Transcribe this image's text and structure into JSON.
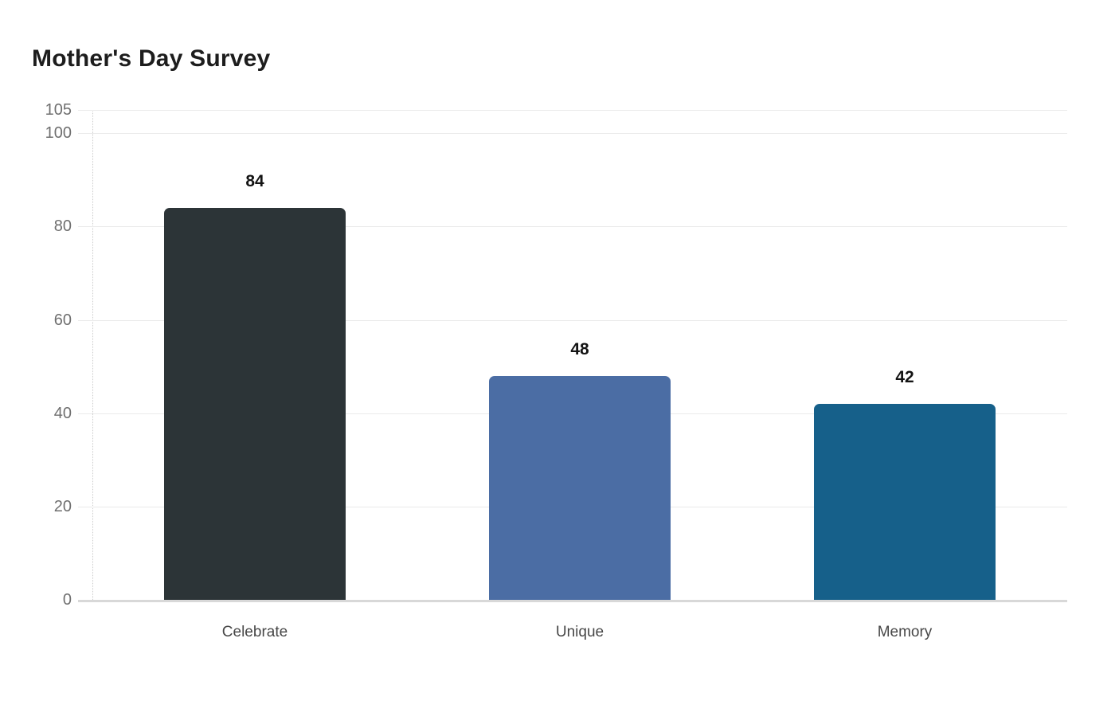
{
  "chart_data": {
    "type": "bar",
    "title": "Mother's Day Survey",
    "categories": [
      "Celebrate",
      "Unique",
      "Memory"
    ],
    "values": [
      84,
      48,
      42
    ],
    "value_labels": [
      "84",
      "48",
      "42"
    ],
    "bar_colors": [
      "#2c3437",
      "#4b6da4",
      "#16608a"
    ],
    "yticks": [
      0,
      20,
      40,
      60,
      80,
      100,
      105
    ],
    "ytick_labels": [
      "0",
      "20",
      "40",
      "60",
      "80",
      "100",
      "105"
    ],
    "ylim": [
      0,
      105
    ],
    "xlabel": "",
    "ylabel": "",
    "grid": true,
    "legend": "none",
    "style": {
      "background": "#ffffff",
      "title_color": "#1d1d1d",
      "ytick_color": "#6f6f6f",
      "category_color": "#474747",
      "value_label_color": "#141414",
      "gridline_color": "#eaeaea",
      "baseline_color": "#d8d8d8",
      "axis_line_color": "#cccccc"
    }
  }
}
